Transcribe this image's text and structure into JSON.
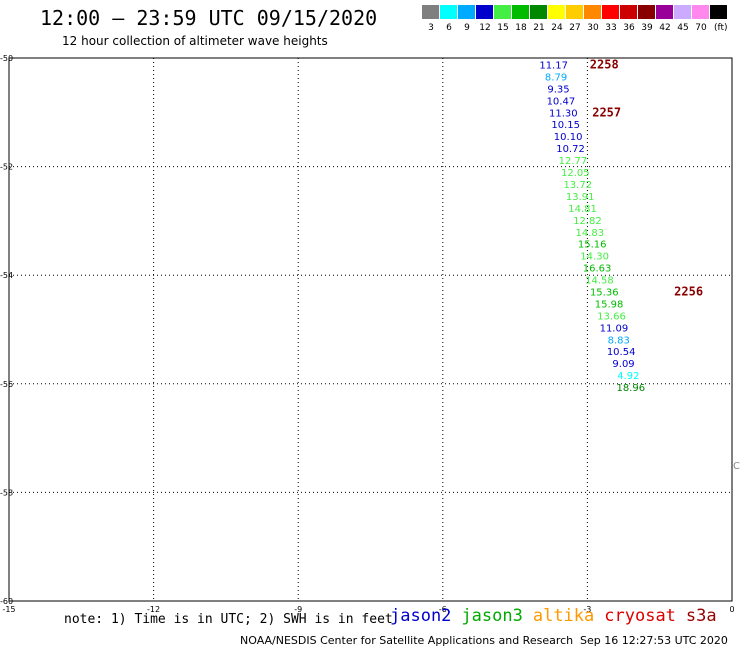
{
  "header": {
    "title": "12:00 – 23:59 UTC 09/15/2020",
    "subtitle": "12 hour collection of altimeter wave heights"
  },
  "color_scale": {
    "unit": "(ft)",
    "bins": [
      {
        "label": "3",
        "color": "#7f7f7f"
      },
      {
        "label": "6",
        "color": "#00ffff"
      },
      {
        "label": "9",
        "color": "#00aaff"
      },
      {
        "label": "12",
        "color": "#0000cc"
      },
      {
        "label": "15",
        "color": "#44ee44"
      },
      {
        "label": "18",
        "color": "#00bb00"
      },
      {
        "label": "21",
        "color": "#008800"
      },
      {
        "label": "24",
        "color": "#ffff00"
      },
      {
        "label": "27",
        "color": "#ffcc00"
      },
      {
        "label": "30",
        "color": "#ff8800"
      },
      {
        "label": "33",
        "color": "#ff0000"
      },
      {
        "label": "36",
        "color": "#cc0000"
      },
      {
        "label": "39",
        "color": "#880000"
      },
      {
        "label": "42",
        "color": "#990099"
      },
      {
        "label": "45",
        "color": "#ccaaff"
      },
      {
        "label": "70",
        "color": "#ff88ee"
      },
      {
        "label": "",
        "color": "#000000"
      }
    ]
  },
  "chart_data": {
    "type": "scatter",
    "title": "12:00 – 23:59 UTC 09/15/2020",
    "xlim": [
      -15,
      0
    ],
    "ylim": [
      -60,
      -50
    ],
    "x_ticks": [
      -15,
      -12,
      -9,
      -6,
      -3,
      0
    ],
    "y_ticks": [
      -50,
      -52,
      -54,
      -56,
      -58,
      -60
    ],
    "x_tick_labels": [
      "-15",
      "-12",
      "-9",
      "-6",
      "-3",
      "0"
    ],
    "y_tick_labels": [
      "-50",
      "-52",
      "-54",
      "-56",
      "-58",
      "-60"
    ],
    "grid": true,
    "points": [
      {
        "x": -3.7,
        "y": -50.12,
        "value": "11.17",
        "color": "#0000cc"
      },
      {
        "x": -3.65,
        "y": -50.34,
        "value": "8.79",
        "color": "#00aaff"
      },
      {
        "x": -3.6,
        "y": -50.56,
        "value": "9.35",
        "color": "#0000cc"
      },
      {
        "x": -3.55,
        "y": -50.78,
        "value": "10.47",
        "color": "#0000cc"
      },
      {
        "x": -3.5,
        "y": -51.0,
        "value": "11.30",
        "color": "#0000cc"
      },
      {
        "x": -3.45,
        "y": -51.22,
        "value": "10.15",
        "color": "#0000cc"
      },
      {
        "x": -3.4,
        "y": -51.44,
        "value": "10.10",
        "color": "#0000cc"
      },
      {
        "x": -3.35,
        "y": -51.66,
        "value": "10.72",
        "color": "#0000cc"
      },
      {
        "x": -3.3,
        "y": -51.88,
        "value": "12.77",
        "color": "#44ee44"
      },
      {
        "x": -3.25,
        "y": -52.1,
        "value": "12.05",
        "color": "#44ee44"
      },
      {
        "x": -3.2,
        "y": -52.32,
        "value": "13.72",
        "color": "#44ee44"
      },
      {
        "x": -3.15,
        "y": -52.54,
        "value": "13.91",
        "color": "#44ee44"
      },
      {
        "x": -3.1,
        "y": -52.76,
        "value": "14.81",
        "color": "#44ee44"
      },
      {
        "x": -3.0,
        "y": -52.98,
        "value": "12.82",
        "color": "#44ee44"
      },
      {
        "x": -2.95,
        "y": -53.2,
        "value": "14.83",
        "color": "#44ee44"
      },
      {
        "x": -2.9,
        "y": -53.42,
        "value": "15.16",
        "color": "#00bb00"
      },
      {
        "x": -2.85,
        "y": -53.64,
        "value": "14.30",
        "color": "#44ee44"
      },
      {
        "x": -2.8,
        "y": -53.86,
        "value": "16.63",
        "color": "#00bb00"
      },
      {
        "x": -2.75,
        "y": -54.08,
        "value": "14.58",
        "color": "#44ee44"
      },
      {
        "x": -2.65,
        "y": -54.3,
        "value": "15.36",
        "color": "#00bb00"
      },
      {
        "x": -2.55,
        "y": -54.52,
        "value": "15.98",
        "color": "#00bb00"
      },
      {
        "x": -2.5,
        "y": -54.74,
        "value": "13.66",
        "color": "#44ee44"
      },
      {
        "x": -2.45,
        "y": -54.96,
        "value": "11.09",
        "color": "#0000cc"
      },
      {
        "x": -2.35,
        "y": -55.18,
        "value": "8.83",
        "color": "#00aaff"
      },
      {
        "x": -2.3,
        "y": -55.4,
        "value": "10.54",
        "color": "#0000cc"
      },
      {
        "x": -2.25,
        "y": -55.62,
        "value": "9.09",
        "color": "#0000cc"
      },
      {
        "x": -2.15,
        "y": -55.84,
        "value": "4.92",
        "color": "#00ffff"
      },
      {
        "x": -2.1,
        "y": -56.06,
        "value": "18.96",
        "color": "#008800"
      }
    ],
    "pass_labels": [
      {
        "text": "2258",
        "x": -2.95,
        "y": -50.12,
        "color": "#880000"
      },
      {
        "text": "2257",
        "x": -2.9,
        "y": -51.0,
        "color": "#880000"
      },
      {
        "text": "2256",
        "x": -1.2,
        "y": -54.3,
        "color": "#880000"
      }
    ]
  },
  "footer": {
    "note": "note: 1) Time is in UTC; 2) SWH is in feet",
    "satellites": [
      {
        "name": "jason2",
        "color": "#0000cc"
      },
      {
        "name": "jason3",
        "color": "#00aa00"
      },
      {
        "name": "altika",
        "color": "#ff9900"
      },
      {
        "name": "cryosat",
        "color": "#dd0000"
      },
      {
        "name": "s3a",
        "color": "#990000"
      }
    ],
    "credit": "NOAA/NESDIS Center for Satellite Applications and Research",
    "timestamp": "Sep 16 12:27:53 UTC 2020",
    "edge_mark": "C"
  }
}
